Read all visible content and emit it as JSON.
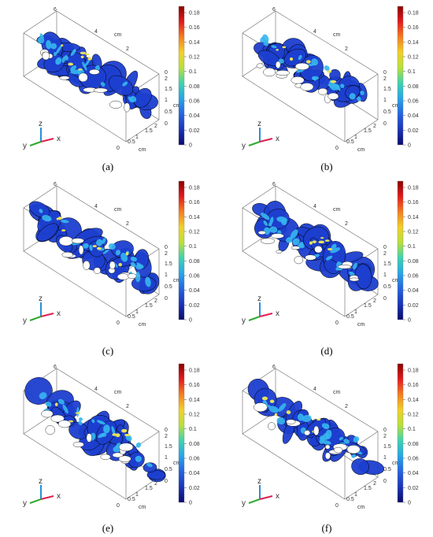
{
  "colorbar": {
    "ticks": [
      "0.18",
      "0.16",
      "0.14",
      "0.12",
      "0.1",
      "0.08",
      "0.06",
      "0.04",
      "0.02",
      "0"
    ],
    "colors": [
      "#8b0000",
      "#e31a1c",
      "#f57e20",
      "#f2d026",
      "#b8e039",
      "#3dd2b0",
      "#28a4e8",
      "#2563e0",
      "#1a33b8",
      "#0a0a6e"
    ]
  },
  "axes": {
    "top_labels": [
      "6",
      "4",
      "cm",
      "2"
    ],
    "right_labels": [
      "0",
      "2",
      "1.5",
      "1",
      "cm",
      "0.5",
      "0"
    ],
    "bottom_labels": [
      "0",
      "0.5",
      "1",
      "cm",
      "1.5",
      "2"
    ]
  },
  "triad": {
    "z": "z",
    "y": "y",
    "x": "x"
  },
  "colors": {
    "vessel": "#1d3fcf",
    "vessel_dark": "#0b1a8a",
    "highlight": "#36b6f0",
    "hot": "#e8e25a"
  },
  "panels": [
    {
      "id": "a",
      "caption": "(a)"
    },
    {
      "id": "b",
      "caption": "(b)"
    },
    {
      "id": "c",
      "caption": "(c)"
    },
    {
      "id": "d",
      "caption": "(d)"
    },
    {
      "id": "e",
      "caption": "(e)"
    },
    {
      "id": "f",
      "caption": "(f)"
    }
  ]
}
